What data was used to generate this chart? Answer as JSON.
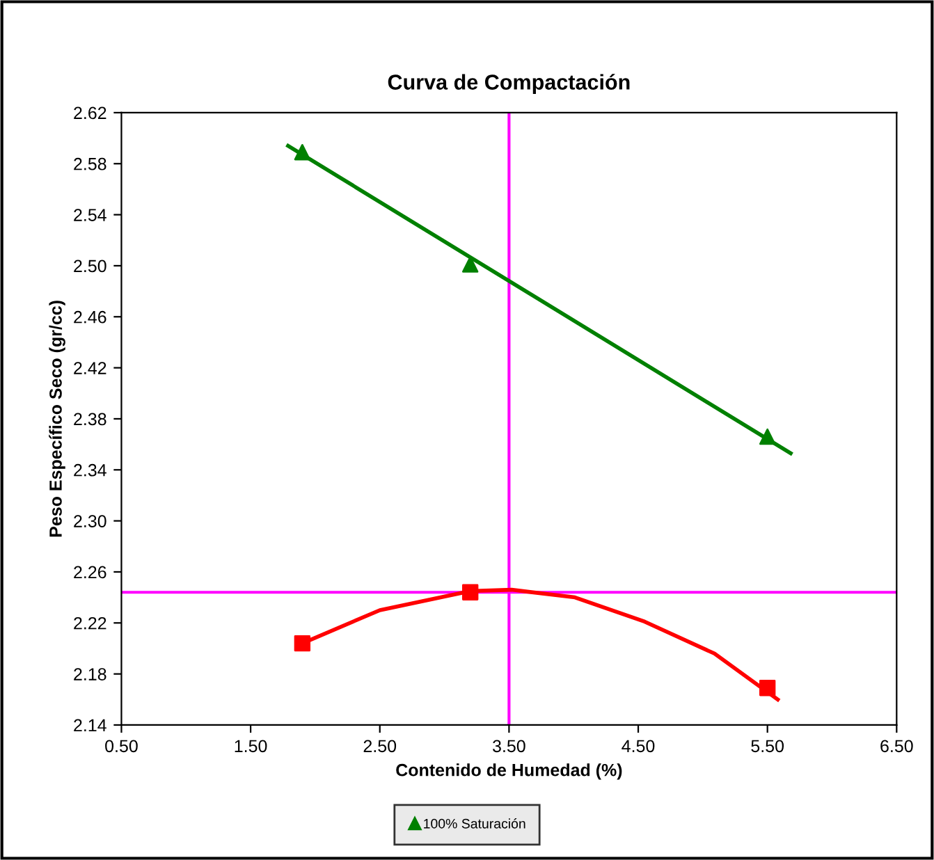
{
  "chart_data": {
    "type": "scatter",
    "title": "Curva de Compactación",
    "xlabel": "Contenido de Humedad (%)",
    "ylabel": "Peso Específico Seco (gr/cc)",
    "xlim": [
      0.5,
      6.5
    ],
    "xticks": [
      {
        "value": 0.5,
        "label": "0.50"
      },
      {
        "value": 1.5,
        "label": "1.50"
      },
      {
        "value": 2.5,
        "label": "2.50"
      },
      {
        "value": 3.5,
        "label": "3.50"
      },
      {
        "value": 4.5,
        "label": "4.50"
      },
      {
        "value": 5.5,
        "label": "5.50"
      },
      {
        "value": 6.5,
        "label": "6.50"
      }
    ],
    "ylim": [
      2.14,
      2.62
    ],
    "yticks": [
      2.14,
      2.18,
      2.22,
      2.26,
      {
        "value": 2.3,
        "label": "2.30"
      },
      2.34,
      2.38,
      2.42,
      2.46,
      {
        "value": 2.5,
        "label": "2.50"
      },
      2.54,
      2.58,
      2.62
    ],
    "grid": false,
    "legend": "bottom",
    "series": [
      {
        "type": "line",
        "color": "#008000",
        "line_style": "solid",
        "x": [
          1.79,
          5.68
        ],
        "values": [
          2.594,
          2.353
        ]
      },
      {
        "name": "100% Saturación",
        "color": "#008000",
        "marker": "triangle",
        "x": [
          1.9,
          3.2,
          5.5
        ],
        "values": [
          2.589,
          2.501,
          2.366
        ]
      },
      {
        "type": "line",
        "color": "#ff0000",
        "line_style": "solid",
        "x": [
          1.9,
          2.5,
          3.2,
          3.52,
          4.01,
          4.55,
          5.09,
          5.58
        ],
        "values": [
          2.204,
          2.23,
          2.245,
          2.246,
          2.24,
          2.221,
          2.196,
          2.16
        ]
      },
      {
        "color": "#ff0000",
        "marker": "square",
        "x": [
          1.9,
          3.2,
          5.5
        ],
        "values": [
          2.204,
          2.244,
          2.169
        ]
      }
    ],
    "ref_lines": [
      {
        "axis": "x",
        "value": 3.5,
        "color": "#ff00ff"
      },
      {
        "axis": "y",
        "value": 2.244,
        "color": "#ff00ff"
      }
    ]
  }
}
